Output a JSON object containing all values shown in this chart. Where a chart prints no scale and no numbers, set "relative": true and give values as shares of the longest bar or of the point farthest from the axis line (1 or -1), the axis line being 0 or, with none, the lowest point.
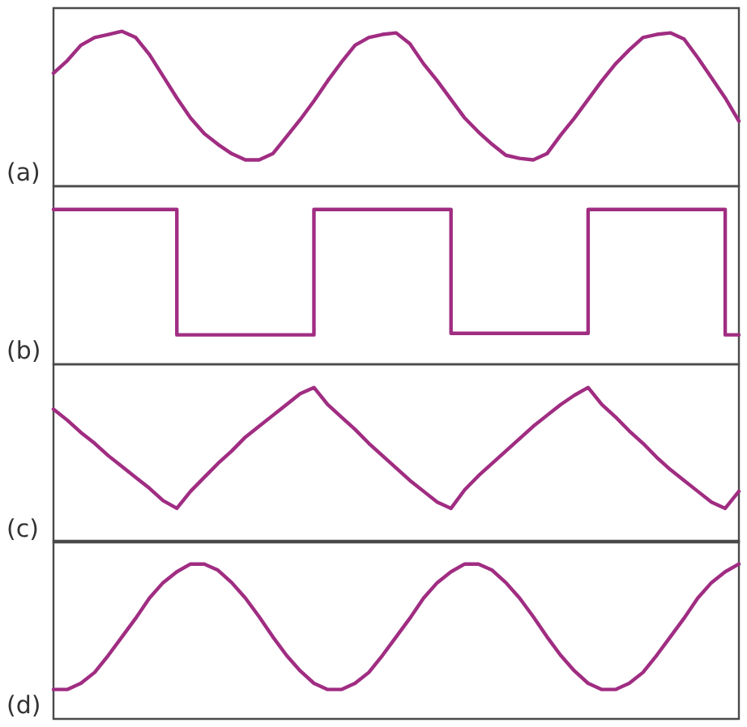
{
  "chart_data": [
    {
      "type": "line",
      "title": "(a)",
      "relative": true,
      "tick_labels": false,
      "color": "#a02d82",
      "categories": [
        null,
        null,
        null,
        null,
        null,
        null,
        null,
        null,
        null,
        null,
        null,
        null,
        null,
        null,
        null,
        null,
        null,
        null,
        null,
        null,
        null,
        null,
        null,
        null,
        null,
        null,
        null,
        null,
        null,
        null,
        null,
        null,
        null,
        null,
        null,
        null,
        null,
        null,
        null,
        null,
        null,
        null,
        null,
        null,
        null,
        null,
        null,
        null,
        null,
        null,
        null
      ],
      "values": [
        0.73,
        0.81,
        0.91,
        0.96,
        0.98,
        1,
        0.96,
        0.85,
        0.71,
        0.57,
        0.44,
        0.34,
        0.27,
        0.21,
        0.17,
        0.17,
        0.21,
        0.32,
        0.43,
        0.55,
        0.68,
        0.8,
        0.91,
        0.96,
        0.98,
        0.99,
        0.92,
        0.79,
        0.68,
        0.56,
        0.44,
        0.35,
        0.27,
        0.2,
        0.18,
        0.17,
        0.21,
        0.33,
        0.44,
        0.56,
        0.68,
        0.79,
        0.88,
        0.96,
        0.98,
        0.99,
        0.95,
        0.83,
        0.7,
        0.57,
        0.42
      ]
    },
    {
      "type": "step",
      "title": "(b)",
      "relative": true,
      "tick_labels": false,
      "color": "#a02d82",
      "categories": [
        null,
        null,
        null,
        null,
        null,
        null,
        null,
        null,
        null,
        null,
        null,
        null,
        null,
        null,
        null,
        null,
        null,
        null,
        null,
        null,
        null,
        null,
        null,
        null,
        null,
        null,
        null,
        null,
        null,
        null,
        null,
        null,
        null,
        null,
        null,
        null,
        null,
        null,
        null,
        null,
        null,
        null,
        null,
        null,
        null,
        null,
        null,
        null,
        null,
        null,
        null
      ],
      "values": [
        1,
        1,
        1,
        1,
        1,
        1,
        1,
        1,
        1,
        0.19,
        0.19,
        0.19,
        0.19,
        0.19,
        0.19,
        0.19,
        0.19,
        0.19,
        0.19,
        1,
        1,
        1,
        1,
        1,
        1,
        1,
        1,
        1,
        1,
        0.2,
        0.2,
        0.2,
        0.2,
        0.2,
        0.2,
        0.2,
        0.2,
        0.2,
        0.2,
        1,
        1,
        1,
        1,
        1,
        1,
        1,
        1,
        1,
        1,
        0.19,
        0.19
      ]
    },
    {
      "type": "line",
      "title": "(c)",
      "relative": true,
      "tick_labels": false,
      "color": "#a02d82",
      "categories": [
        null,
        null,
        null,
        null,
        null,
        null,
        null,
        null,
        null,
        null,
        null,
        null,
        null,
        null,
        null,
        null,
        null,
        null,
        null,
        null,
        null,
        null,
        null,
        null,
        null,
        null,
        null,
        null,
        null,
        null,
        null,
        null,
        null,
        null,
        null,
        null,
        null,
        null,
        null,
        null,
        null,
        null,
        null,
        null,
        null,
        null,
        null,
        null,
        null,
        null,
        null
      ],
      "values": [
        0.86,
        0.79,
        0.71,
        0.64,
        0.56,
        0.49,
        0.42,
        0.35,
        0.27,
        0.22,
        0.33,
        0.42,
        0.51,
        0.59,
        0.68,
        0.75,
        0.82,
        0.89,
        0.96,
        1,
        0.89,
        0.81,
        0.73,
        0.64,
        0.56,
        0.48,
        0.4,
        0.33,
        0.26,
        0.22,
        0.34,
        0.43,
        0.51,
        0.59,
        0.67,
        0.75,
        0.82,
        0.89,
        0.95,
        1,
        0.89,
        0.81,
        0.72,
        0.64,
        0.55,
        0.47,
        0.4,
        0.33,
        0.26,
        0.22,
        0.33
      ]
    },
    {
      "type": "line",
      "title": "(d)",
      "relative": true,
      "tick_labels": false,
      "color": "#a02d82",
      "categories": [
        null,
        null,
        null,
        null,
        null,
        null,
        null,
        null,
        null,
        null,
        null,
        null,
        null,
        null,
        null,
        null,
        null,
        null,
        null,
        null,
        null,
        null,
        null,
        null,
        null,
        null,
        null,
        null,
        null,
        null,
        null,
        null,
        null,
        null,
        null,
        null,
        null,
        null,
        null,
        null,
        null,
        null,
        null,
        null,
        null,
        null,
        null,
        null,
        null,
        null,
        null
      ],
      "values": [
        0.19,
        0.19,
        0.23,
        0.3,
        0.41,
        0.53,
        0.65,
        0.78,
        0.88,
        0.95,
        1,
        1,
        0.96,
        0.88,
        0.78,
        0.66,
        0.53,
        0.41,
        0.31,
        0.23,
        0.19,
        0.19,
        0.23,
        0.3,
        0.41,
        0.53,
        0.65,
        0.78,
        0.88,
        0.95,
        1,
        1,
        0.96,
        0.88,
        0.78,
        0.66,
        0.53,
        0.41,
        0.31,
        0.23,
        0.19,
        0.19,
        0.23,
        0.3,
        0.41,
        0.53,
        0.65,
        0.78,
        0.88,
        0.95,
        1
      ]
    }
  ]
}
